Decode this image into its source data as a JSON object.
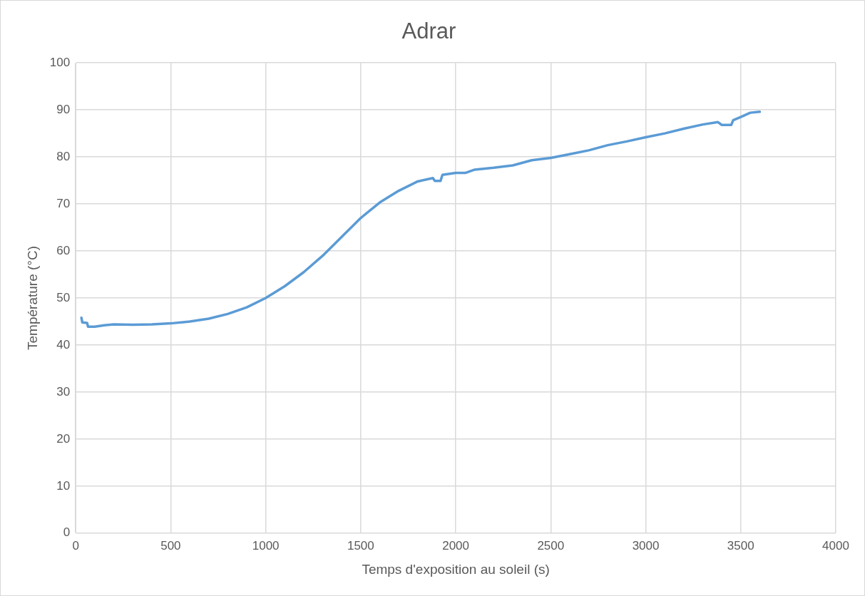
{
  "chart_data": {
    "type": "line",
    "title": "Adrar",
    "xlabel": "Temps d'exposition au soleil (s)",
    "ylabel": "Température (°C)",
    "xlim": [
      0,
      4000
    ],
    "xticks": [
      0,
      500,
      1000,
      1500,
      2000,
      2500,
      3000,
      3500,
      4000
    ],
    "ylim": [
      0,
      100
    ],
    "yticks": [
      0,
      10,
      20,
      30,
      40,
      50,
      60,
      70,
      80,
      90,
      100
    ],
    "grid": true,
    "marker": "none",
    "line_style": "solid",
    "series": [
      {
        "color": "#5b9bd5",
        "x": [
          30,
          35,
          60,
          65,
          100,
          150,
          200,
          300,
          400,
          500,
          600,
          700,
          800,
          900,
          1000,
          1100,
          1200,
          1300,
          1400,
          1500,
          1600,
          1700,
          1800,
          1880,
          1890,
          1920,
          1930,
          2000,
          2050,
          2100,
          2200,
          2300,
          2400,
          2500,
          2600,
          2700,
          2800,
          2900,
          3000,
          3100,
          3200,
          3300,
          3380,
          3400,
          3450,
          3460,
          3500,
          3550,
          3600
        ],
        "values": [
          45.8,
          44.8,
          44.7,
          43.9,
          43.9,
          44.2,
          44.4,
          44.3,
          44.4,
          44.6,
          45.0,
          45.6,
          46.6,
          48.0,
          50.0,
          52.5,
          55.5,
          59.0,
          63.0,
          67.0,
          70.3,
          72.8,
          74.8,
          75.5,
          74.9,
          74.9,
          76.2,
          76.6,
          76.6,
          77.3,
          77.7,
          78.2,
          79.3,
          79.8,
          80.6,
          81.4,
          82.5,
          83.3,
          84.2,
          85.0,
          86.0,
          86.9,
          87.4,
          86.8,
          86.8,
          87.8,
          88.5,
          89.4,
          89.6
        ]
      }
    ]
  }
}
